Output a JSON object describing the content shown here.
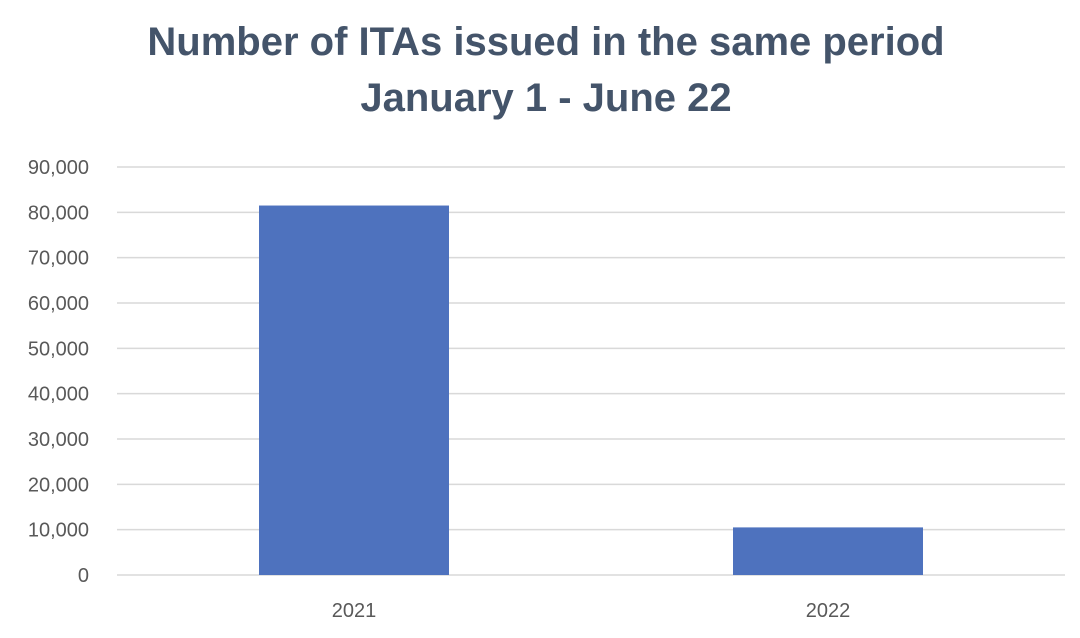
{
  "chart_data": {
    "type": "bar",
    "title": "Number of ITAs issued in the same period",
    "subtitle": "January 1 - June 22",
    "categories": [
      "2021",
      "2022"
    ],
    "values": [
      81500,
      10500
    ],
    "ylim": [
      0,
      90000
    ],
    "yticks": [
      0,
      10000,
      20000,
      30000,
      40000,
      50000,
      60000,
      70000,
      80000,
      90000
    ],
    "ytick_labels": [
      "0",
      "10,000",
      "20,000",
      "30,000",
      "40,000",
      "50,000",
      "60,000",
      "70,000",
      "80,000",
      "90,000"
    ],
    "grid": true,
    "legend": "none",
    "bar_color": "#4e72be",
    "grid_color": "#d9d9d9",
    "title_color": "#44546a",
    "tick_color": "#595959"
  }
}
